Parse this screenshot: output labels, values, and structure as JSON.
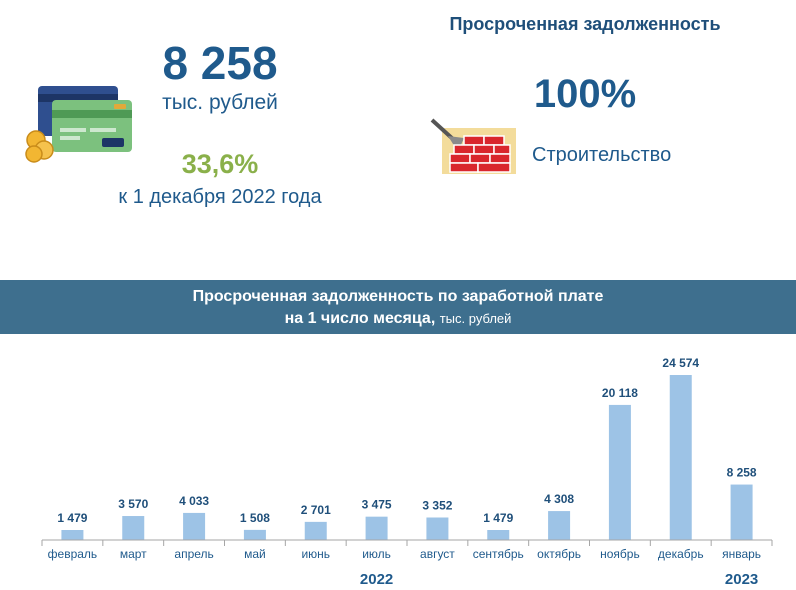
{
  "summary": {
    "total_value": "8 258",
    "total_unit": "тыс. рублей",
    "growth_pct": "33,6%",
    "growth_note": "к 1 декабря 2022 года"
  },
  "overdue": {
    "title": "Просроченная задолженность",
    "share_pct": "100%",
    "industry": "Строительство"
  },
  "icons": {
    "cards": "credit-cards-icon",
    "construction": "brick-wall-trowel-icon"
  },
  "colors": {
    "accent": "#1f5a8c",
    "growth": "#8ab04a",
    "banner": "#3e6f8e",
    "bar": "#9dc3e6"
  },
  "chart_data": {
    "type": "bar",
    "title_line1": "Просроченная задолженность по заработной плате",
    "title_line2": "на 1 число месяца,",
    "title_unit": "тыс. рублей",
    "categories": [
      "февраль",
      "март",
      "апрель",
      "май",
      "июнь",
      "июль",
      "август",
      "сентябрь",
      "октябрь",
      "ноябрь",
      "декабрь",
      "январь"
    ],
    "values": [
      1479,
      3570,
      4033,
      1508,
      2701,
      3475,
      3352,
      1479,
      4308,
      20118,
      24574,
      8258
    ],
    "value_labels": [
      "1 479",
      "3 570",
      "4 033",
      "1 508",
      "2 701",
      "3 475",
      "3 352",
      "1 479",
      "4 308",
      "20 118",
      "24 574",
      "8 258"
    ],
    "year_labels": [
      "2022",
      "2023"
    ],
    "xlabel": "",
    "ylabel": "",
    "grid": false,
    "legend": "none"
  }
}
